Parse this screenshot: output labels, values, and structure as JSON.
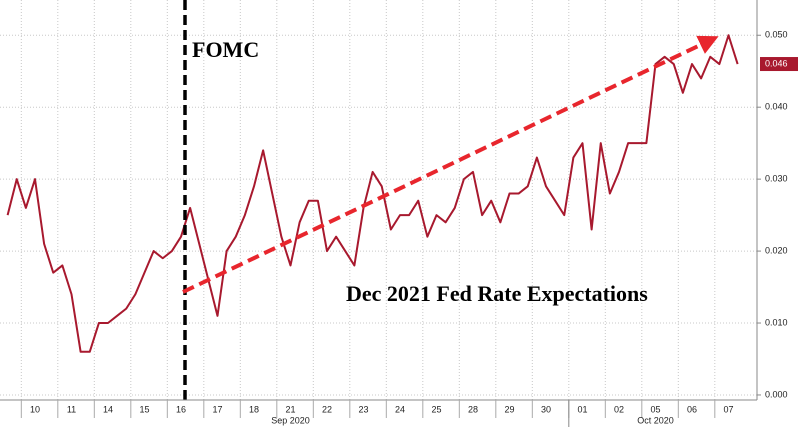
{
  "chart_data": {
    "type": "line",
    "annotations": [
      "FOMC",
      "Dec 2021 Fed Rate Expectations"
    ],
    "x_group_labels": [
      "Sep 2020",
      "Oct 2020"
    ],
    "categories": [
      null,
      null,
      null,
      "10",
      null,
      null,
      null,
      "11",
      null,
      null,
      null,
      "14",
      null,
      null,
      null,
      "15",
      null,
      null,
      null,
      "16",
      null,
      null,
      null,
      "17",
      null,
      null,
      null,
      "18",
      null,
      null,
      null,
      "21",
      null,
      null,
      null,
      "22",
      null,
      null,
      null,
      "23",
      null,
      null,
      null,
      "24",
      null,
      null,
      null,
      "25",
      null,
      null,
      null,
      "28",
      null,
      null,
      null,
      "29",
      null,
      null,
      null,
      "30",
      null,
      null,
      null,
      "01",
      null,
      null,
      null,
      "02",
      null,
      null,
      null,
      "05",
      null,
      null,
      null,
      "06",
      null,
      null,
      null,
      "07",
      null
    ],
    "series": [
      {
        "name": "Dec 2021 Fed Rate",
        "color": "#a8192e",
        "values": [
          0.025,
          0.03,
          0.026,
          0.03,
          0.021,
          0.017,
          0.018,
          0.014,
          0.006,
          0.006,
          0.01,
          0.01,
          0.011,
          0.012,
          0.014,
          0.017,
          0.02,
          0.019,
          0.02,
          0.022,
          0.026,
          0.021,
          0.016,
          0.011,
          0.02,
          0.022,
          0.025,
          0.029,
          0.034,
          0.028,
          0.022,
          0.018,
          0.024,
          0.027,
          0.027,
          0.02,
          0.022,
          0.02,
          0.018,
          0.026,
          0.031,
          0.029,
          0.023,
          0.025,
          0.025,
          0.027,
          0.022,
          0.025,
          0.024,
          0.026,
          0.03,
          0.031,
          0.025,
          0.027,
          0.024,
          0.028,
          0.028,
          0.029,
          0.033,
          0.029,
          0.027,
          0.025,
          0.033,
          0.035,
          0.023,
          0.035,
          0.028,
          0.031,
          0.035,
          0.035,
          0.035,
          0.046,
          0.047,
          0.046,
          0.042,
          0.046,
          0.044,
          0.047,
          0.046,
          0.05,
          0.046
        ]
      }
    ],
    "ylim": [
      -0.0007,
      0.0549
    ],
    "yticks": [
      {
        "value": 0,
        "label": "0.000"
      },
      {
        "value": 0.01,
        "label": "0.010"
      },
      {
        "value": 0.02,
        "label": "0.020"
      },
      {
        "value": 0.03,
        "label": "0.030"
      },
      {
        "value": 0.04,
        "label": "0.040"
      },
      {
        "value": 0.05,
        "label": "0.050"
      }
    ],
    "grid": true
  }
}
